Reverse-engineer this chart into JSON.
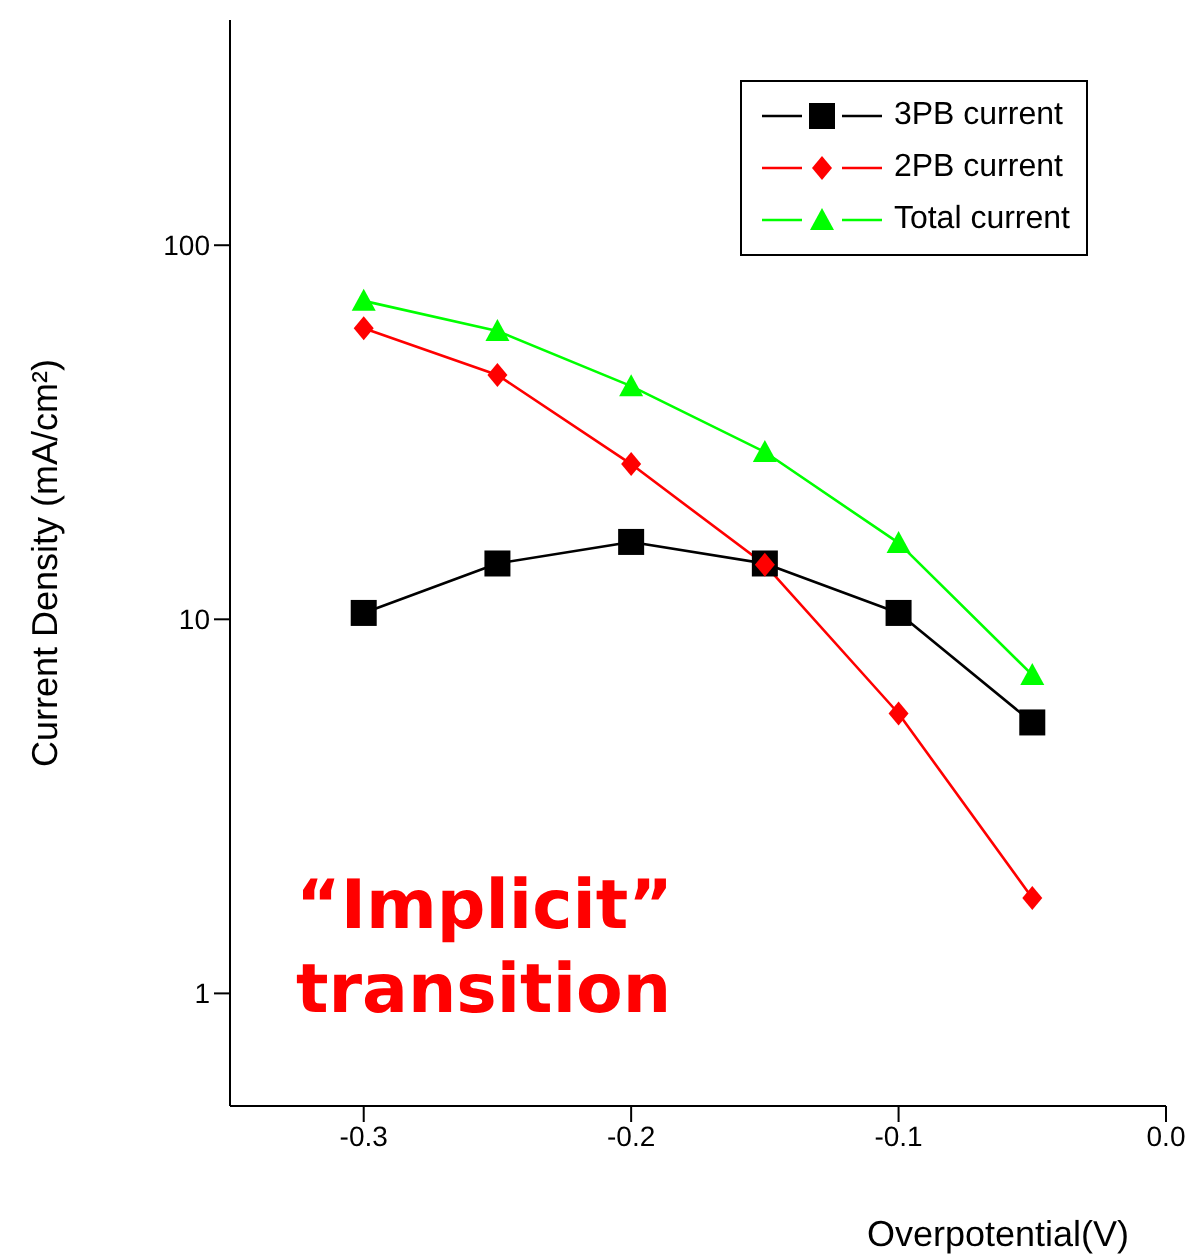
{
  "chart_data": {
    "type": "line",
    "xlabel": "Overpotential(V)",
    "ylabel": "Current Density (mA/cm²)",
    "x": [
      -0.3,
      -0.25,
      -0.2,
      -0.15,
      -0.1,
      -0.05
    ],
    "series": [
      {
        "name": "3PB current",
        "color": "#000000",
        "marker": "square",
        "values": [
          10.4,
          14.1,
          16.1,
          14.1,
          10.4,
          5.3
        ]
      },
      {
        "name": "2PB current",
        "color": "#ff0000",
        "marker": "diamond",
        "values": [
          60,
          45,
          26,
          14,
          5.6,
          1.8
        ]
      },
      {
        "name": "Total current",
        "color": "#00ff00",
        "marker": "triangle",
        "values": [
          71,
          59,
          42,
          28,
          16,
          7.1
        ]
      }
    ],
    "xlim": [
      -0.35,
      0
    ],
    "xticks": [
      {
        "value": -0.3,
        "label": "-0.3"
      },
      {
        "value": -0.2,
        "label": "-0.2"
      },
      {
        "value": -0.1,
        "label": "-0.1"
      },
      {
        "value": 0,
        "label": "0.0"
      }
    ],
    "ylim": [
      0.5,
      400
    ],
    "yticks": [
      1,
      10,
      100
    ],
    "log": "y",
    "legend": "top right",
    "annotations": [
      "“Implicit” transition"
    ]
  }
}
